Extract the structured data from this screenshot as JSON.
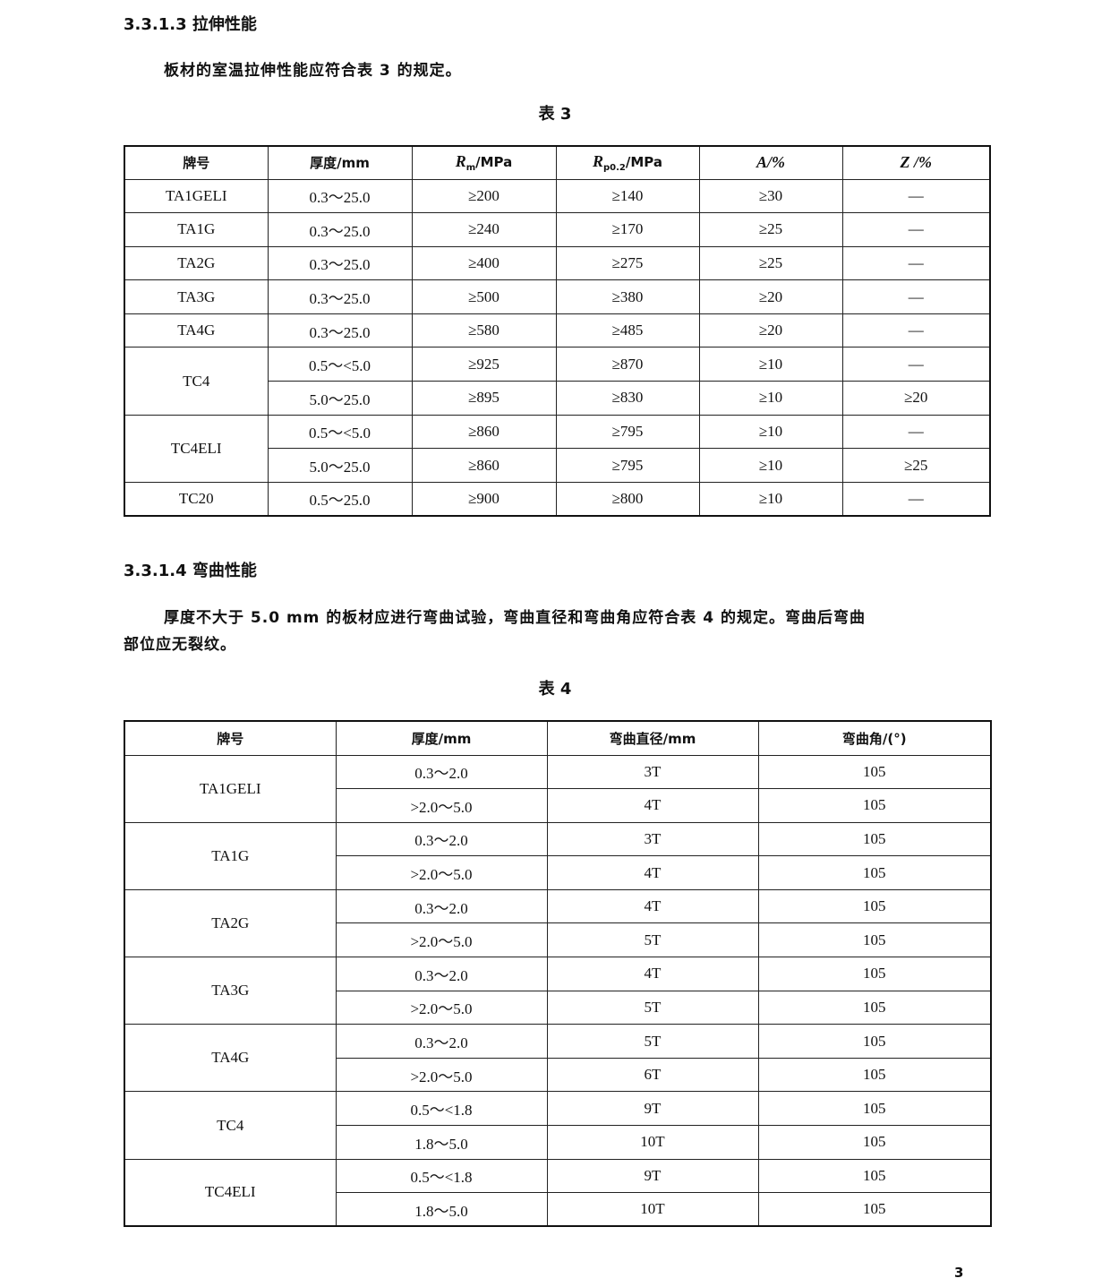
{
  "section1": {
    "heading": "3.3.1.3  拉伸性能",
    "text": "板材的室温拉伸性能应符合表 3 的规定。",
    "caption": "表 3"
  },
  "table3": {
    "headers": {
      "grade": "牌号",
      "thickness": "厚度/mm",
      "rm_sym": "R",
      "rm_sub": "m",
      "rm_unit": "/MPa",
      "rp_sym": "R",
      "rp_sub": "p0.2",
      "rp_unit": "/MPa",
      "a": "A/%",
      "z": "Z /%"
    },
    "groups": [
      {
        "grade": "TA1GELI",
        "rows": [
          [
            "0.3～25.0",
            "≥200",
            "≥140",
            "≥30",
            "—"
          ]
        ]
      },
      {
        "grade": "TA1G",
        "rows": [
          [
            "0.3～25.0",
            "≥240",
            "≥170",
            "≥25",
            "—"
          ]
        ]
      },
      {
        "grade": "TA2G",
        "rows": [
          [
            "0.3～25.0",
            "≥400",
            "≥275",
            "≥25",
            "—"
          ]
        ]
      },
      {
        "grade": "TA3G",
        "rows": [
          [
            "0.3～25.0",
            "≥500",
            "≥380",
            "≥20",
            "—"
          ]
        ]
      },
      {
        "grade": "TA4G",
        "rows": [
          [
            "0.3～25.0",
            "≥580",
            "≥485",
            "≥20",
            "—"
          ]
        ]
      },
      {
        "grade": "TC4",
        "rows": [
          [
            "0.5～<5.0",
            "≥925",
            "≥870",
            "≥10",
            "—"
          ],
          [
            "5.0～25.0",
            "≥895",
            "≥830",
            "≥10",
            "≥20"
          ]
        ]
      },
      {
        "grade": "TC4ELI",
        "rows": [
          [
            "0.5～<5.0",
            "≥860",
            "≥795",
            "≥10",
            "—"
          ],
          [
            "5.0～25.0",
            "≥860",
            "≥795",
            "≥10",
            "≥25"
          ]
        ]
      },
      {
        "grade": "TC20",
        "rows": [
          [
            "0.5～25.0",
            "≥900",
            "≥800",
            "≥10",
            "—"
          ]
        ]
      }
    ]
  },
  "section2": {
    "heading": "3.3.1.4  弯曲性能",
    "text_line1": "厚度不大于 5.0 mm 的板材应进行弯曲试验，弯曲直径和弯曲角应符合表 4 的规定。弯曲后弯曲",
    "text_line2": "部位应无裂纹。",
    "caption": "表 4"
  },
  "table4": {
    "headers": [
      "牌号",
      "厚度/mm",
      "弯曲直径/mm",
      "弯曲角/(°)"
    ],
    "groups": [
      {
        "grade": "TA1GELI",
        "rows": [
          [
            "0.3～2.0",
            "3T",
            "105"
          ],
          [
            ">2.0～5.0",
            "4T",
            "105"
          ]
        ]
      },
      {
        "grade": "TA1G",
        "rows": [
          [
            "0.3～2.0",
            "3T",
            "105"
          ],
          [
            ">2.0～5.0",
            "4T",
            "105"
          ]
        ]
      },
      {
        "grade": "TA2G",
        "rows": [
          [
            "0.3～2.0",
            "4T",
            "105"
          ],
          [
            ">2.0～5.0",
            "5T",
            "105"
          ]
        ]
      },
      {
        "grade": "TA3G",
        "rows": [
          [
            "0.3～2.0",
            "4T",
            "105"
          ],
          [
            ">2.0～5.0",
            "5T",
            "105"
          ]
        ]
      },
      {
        "grade": "TA4G",
        "rows": [
          [
            "0.3～2.0",
            "5T",
            "105"
          ],
          [
            ">2.0～5.0",
            "6T",
            "105"
          ]
        ]
      },
      {
        "grade": "TC4",
        "rows": [
          [
            "0.5～<1.8",
            "9T",
            "105"
          ],
          [
            "1.8～5.0",
            "10T",
            "105"
          ]
        ]
      },
      {
        "grade": "TC4ELI",
        "rows": [
          [
            "0.5～<1.8",
            "9T",
            "105"
          ],
          [
            "1.8～5.0",
            "10T",
            "105"
          ]
        ]
      }
    ]
  },
  "page_number": "3"
}
